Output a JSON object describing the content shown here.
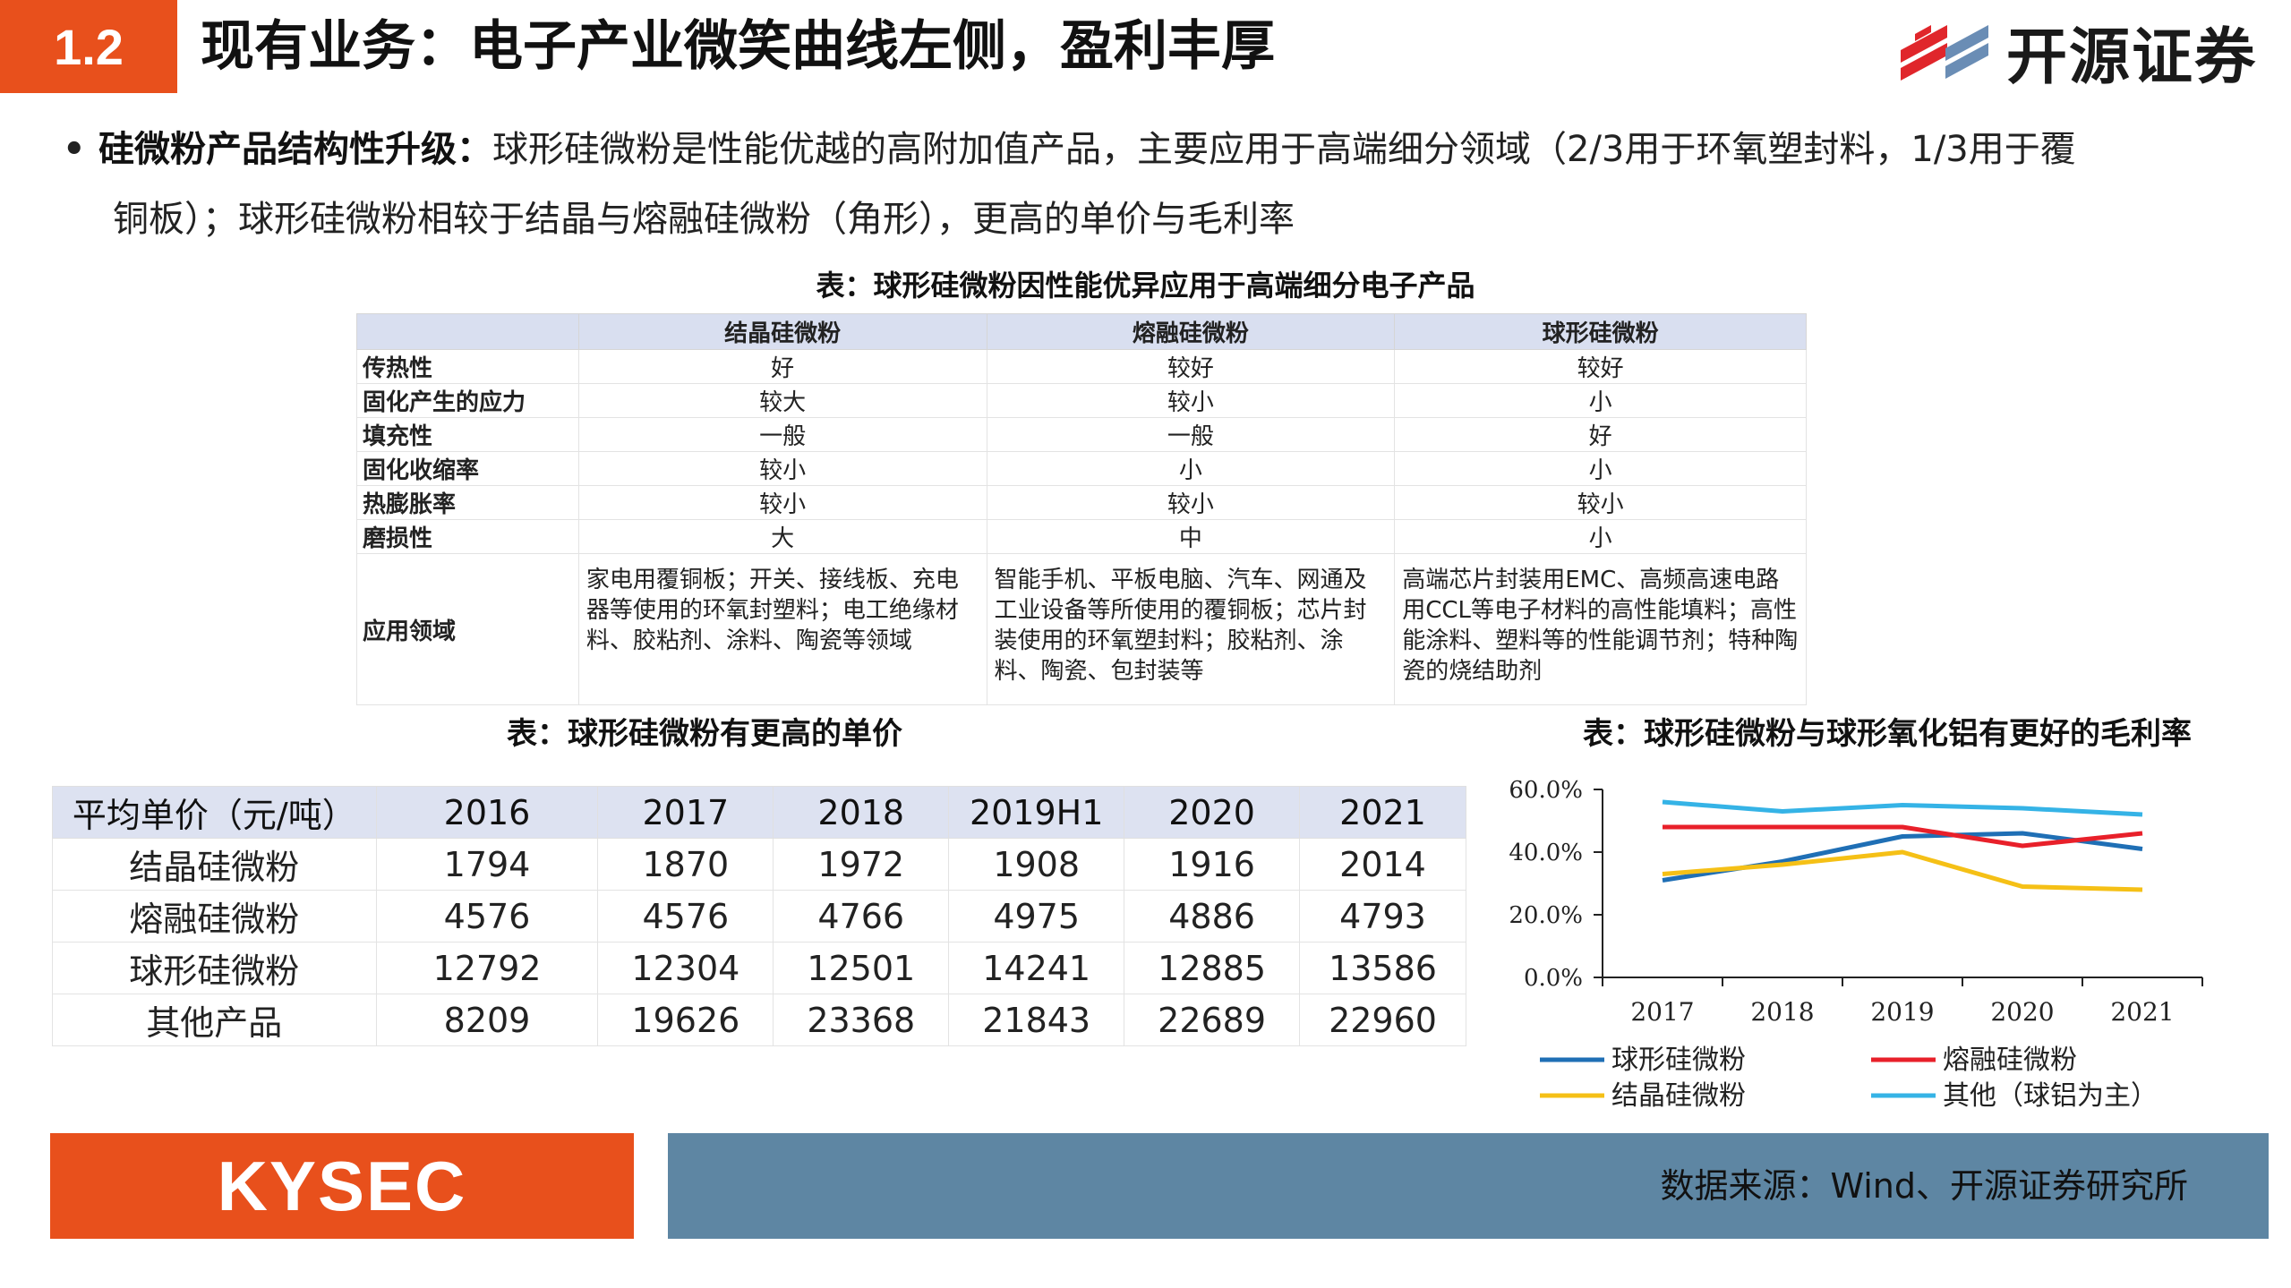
{
  "header": {
    "section_number": "1.2",
    "title": "现有业务：电子产业微笑曲线左侧，盈利丰厚",
    "logo_text": "开源证券"
  },
  "bullet": {
    "bold_prefix": "硅微粉产品结构性升级：",
    "line1": "球形硅微粉是性能优越的高附加值产品，主要应用于高端细分领域（2/3用于环氧塑封料，1/3用于覆",
    "line2": "铜板）；球形硅微粉相较于结晶与熔融硅微粉（角形），更高的单价与毛利率"
  },
  "table1": {
    "caption": "表：球形硅微粉因性能优异应用于高端细分电子产品",
    "headers": [
      "",
      "结晶硅微粉",
      "熔融硅微粉",
      "球形硅微粉"
    ],
    "rows": [
      [
        "传热性",
        "好",
        "较好",
        "较好"
      ],
      [
        "固化产生的应力",
        "较大",
        "较小",
        "小"
      ],
      [
        "填充性",
        "一般",
        "一般",
        "好"
      ],
      [
        "固化收缩率",
        "较小",
        "小",
        "小"
      ],
      [
        "热膨胀率",
        "较小",
        "较小",
        "较小"
      ],
      [
        "磨损性",
        "大",
        "中",
        "小"
      ]
    ],
    "app_row": {
      "label": "应用领域",
      "c1": "家电用覆铜板；开关、接线板、充电器等使用的环氧封塑料；电工绝缘材料、胶粘剂、涂料、陶瓷等领域",
      "c2": "智能手机、平板电脑、汽车、网通及工业设备等所使用的覆铜板；芯片封装使用的环氧塑封料；胶粘剂、涂料、陶瓷、包封装等",
      "c3": "高端芯片封装用EMC、高频高速电路用CCL等电子材料的高性能填料；高性能涂料、塑料等的性能调节剂；特种陶瓷的烧结助剂"
    }
  },
  "table2": {
    "caption": "表：球形硅微粉有更高的单价",
    "headers": [
      "平均单价（元/吨）",
      "2016",
      "2017",
      "2018",
      "2019H1",
      "2020",
      "2021"
    ],
    "rows": [
      [
        "结晶硅微粉",
        "1794",
        "1870",
        "1972",
        "1908",
        "1916",
        "2014"
      ],
      [
        "熔融硅微粉",
        "4576",
        "4576",
        "4766",
        "4975",
        "4886",
        "4793"
      ],
      [
        "球形硅微粉",
        "12792",
        "12304",
        "12501",
        "14241",
        "12885",
        "13586"
      ],
      [
        "其他产品",
        "8209",
        "19626",
        "23368",
        "21843",
        "22689",
        "22960"
      ]
    ]
  },
  "chart_caption": "表：球形硅微粉与球形氧化铝有更好的毛利率",
  "chart_data": {
    "type": "line",
    "x": [
      "2017",
      "2018",
      "2019",
      "2020",
      "2021"
    ],
    "ylim": [
      0,
      60
    ],
    "yticks": [
      "0.0%",
      "20.0%",
      "40.0%",
      "60.0%"
    ],
    "series": [
      {
        "name": "球形硅微粉",
        "color": "#1f6fb5",
        "values": [
          31,
          37,
          45,
          46,
          41
        ]
      },
      {
        "name": "熔融硅微粉",
        "color": "#e8202a",
        "values": [
          48,
          48,
          48,
          42,
          46
        ]
      },
      {
        "name": "结晶硅微粉",
        "color": "#f5c016",
        "values": [
          33,
          36,
          40,
          29,
          28
        ]
      },
      {
        "name": "其他（球铝为主）",
        "color": "#35b3e6",
        "values": [
          56,
          53,
          55,
          54,
          52
        ]
      }
    ],
    "grid": false,
    "legend": "bottom"
  },
  "footer": {
    "brand": "KYSEC",
    "source": "数据来源：Wind、开源证券研究所"
  },
  "colors": {
    "accent": "#e8501c",
    "footer_blue": "#5e86a3",
    "table_header": "#d9dff0"
  }
}
